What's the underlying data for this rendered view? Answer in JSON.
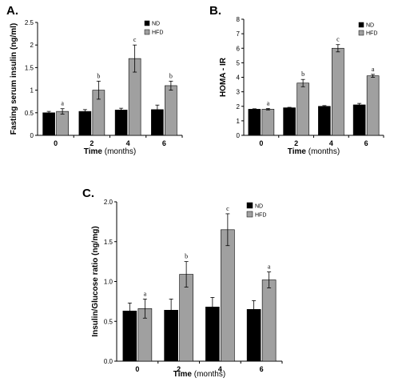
{
  "colors": {
    "nd": "#000000",
    "hfd": "#a0a0a0",
    "axis": "#000000"
  },
  "chart_data": [
    {
      "id": "A",
      "type": "bar",
      "panel_label": "A.",
      "ylabel": "Fasting serum insulin (ng/ml)",
      "xlabel_bold": "Time",
      "xlabel_unit": "(months)",
      "categories": [
        "0",
        "2",
        "4",
        "6"
      ],
      "ylim": [
        0,
        2.5
      ],
      "yticks": [
        "0",
        "0.5",
        "1",
        "1.5",
        "2",
        "2.5"
      ],
      "ytick_values": [
        0,
        0.5,
        1,
        1.5,
        2,
        2.5
      ],
      "legend_position": "top-right",
      "series": [
        {
          "name": "ND",
          "values": [
            0.5,
            0.53,
            0.56,
            0.57
          ],
          "errors": [
            0.03,
            0.04,
            0.04,
            0.1
          ]
        },
        {
          "name": "HFD",
          "values": [
            0.53,
            1.0,
            1.7,
            1.1
          ],
          "errors": [
            0.06,
            0.2,
            0.3,
            0.1
          ],
          "annotations": [
            "a",
            "b",
            "c",
            "b"
          ]
        }
      ]
    },
    {
      "id": "B",
      "type": "bar",
      "panel_label": "B.",
      "ylabel": "HOMA - IR",
      "xlabel_bold": "Time",
      "xlabel_unit": "(months)",
      "categories": [
        "0",
        "2",
        "4",
        "6"
      ],
      "ylim": [
        0,
        8
      ],
      "yticks": [
        "0",
        "1",
        "2",
        "3",
        "4",
        "5",
        "6",
        "7",
        "8"
      ],
      "ytick_values": [
        0,
        1,
        2,
        3,
        4,
        5,
        6,
        7,
        8
      ],
      "legend_position": "top-right",
      "series": [
        {
          "name": "ND",
          "values": [
            1.8,
            1.9,
            2.0,
            2.1
          ],
          "errors": [
            0.03,
            0.03,
            0.05,
            0.1
          ]
        },
        {
          "name": "HFD",
          "values": [
            1.8,
            3.6,
            6.0,
            4.1
          ],
          "errors": [
            0.05,
            0.25,
            0.25,
            0.1
          ],
          "annotations": [
            "a",
            "b",
            "c",
            "a"
          ]
        }
      ]
    },
    {
      "id": "C",
      "type": "bar",
      "panel_label": "C.",
      "ylabel": "Insulin/Glucose ratio (ng/mg)",
      "xlabel_bold": "Time",
      "xlabel_unit": "(months)",
      "categories": [
        "0",
        "2",
        "4",
        "6"
      ],
      "ylim": [
        0,
        2.0
      ],
      "yticks": [
        "0.0",
        "0.5",
        "1.0",
        "1.5",
        "2.0"
      ],
      "ytick_values": [
        0,
        0.5,
        1.0,
        1.5,
        2.0
      ],
      "legend_position": "top-right",
      "series": [
        {
          "name": "ND",
          "values": [
            0.63,
            0.64,
            0.68,
            0.65
          ],
          "errors": [
            0.1,
            0.14,
            0.12,
            0.11
          ]
        },
        {
          "name": "HFD",
          "values": [
            0.66,
            1.09,
            1.65,
            1.02
          ],
          "errors": [
            0.12,
            0.16,
            0.2,
            0.1
          ],
          "annotations": [
            "a",
            "b",
            "c",
            "a"
          ]
        }
      ]
    }
  ]
}
